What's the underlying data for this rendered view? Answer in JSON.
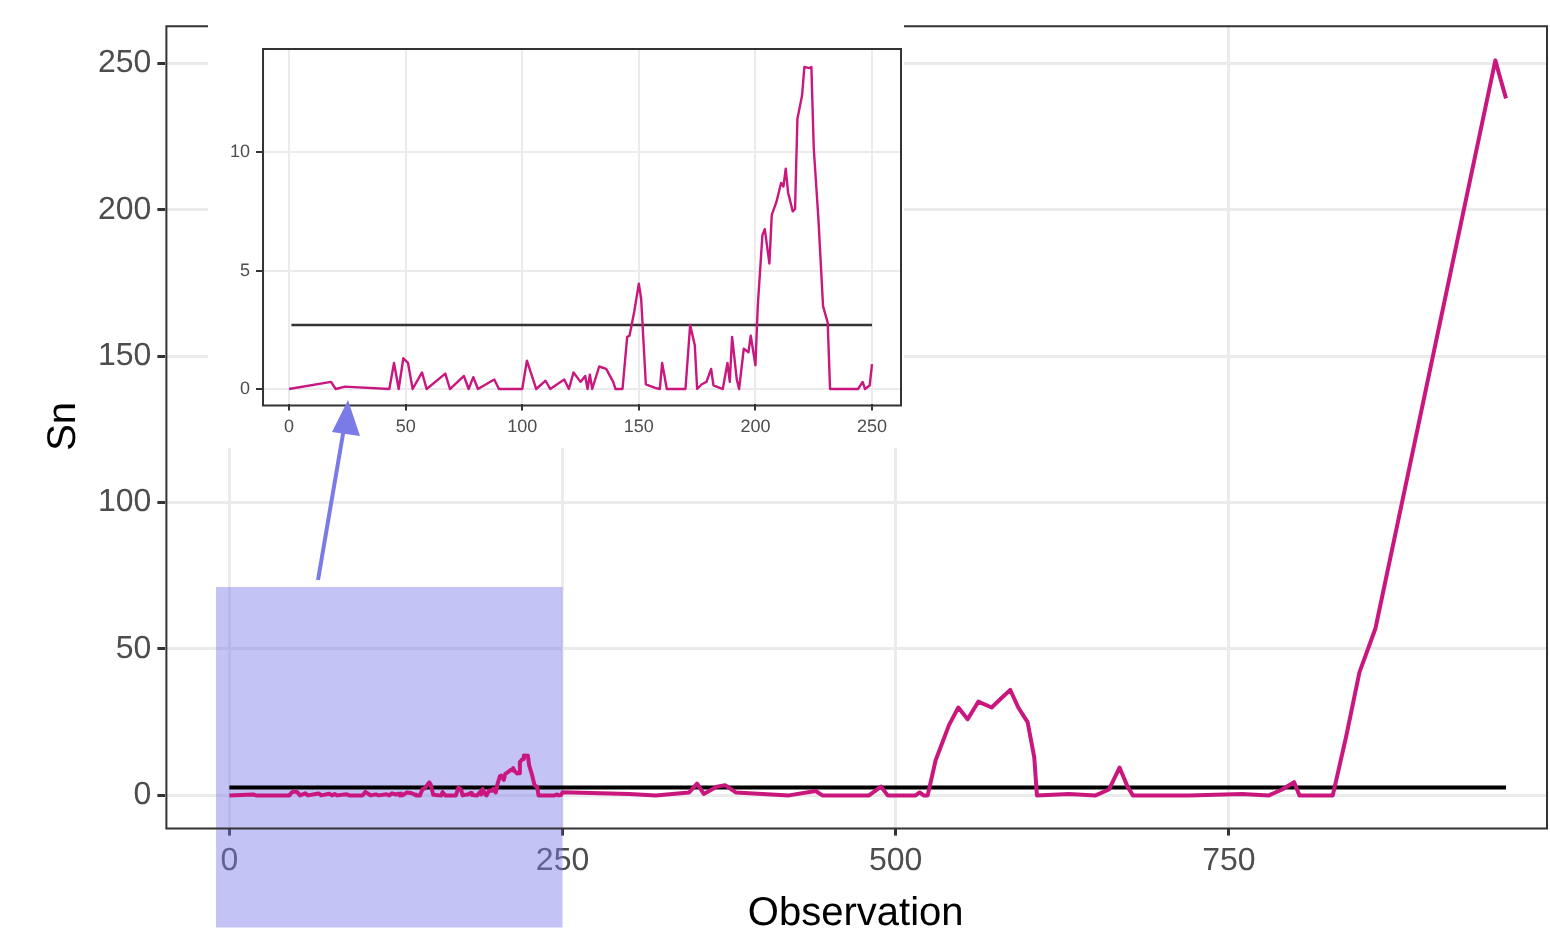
{
  "chart_data": [
    {
      "type": "line",
      "xlabel": "Observation",
      "ylabel": "Sn",
      "xlim": [
        -48,
        988
      ],
      "ylim": [
        -11,
        263
      ],
      "xticks": [
        0,
        250,
        500,
        750
      ],
      "yticks": [
        0,
        50,
        100,
        150,
        200,
        250
      ],
      "grid": true,
      "legend": false,
      "marker": "none",
      "line_style": "solid",
      "bands": [
        {
          "axis": "x",
          "from": -10,
          "to": 250,
          "color": "#7b7be8"
        }
      ],
      "series": [
        {
          "color": "#c9177e",
          "x": [
            0,
            18,
            20,
            45,
            47,
            49,
            51,
            53,
            57,
            59,
            67,
            69,
            75,
            77,
            79,
            81,
            88,
            90,
            100,
            102,
            105,
            106,
            110,
            112,
            118,
            120,
            122,
            125,
            127,
            128,
            129,
            130,
            133,
            136,
            139,
            140,
            143,
            145,
            146,
            148,
            150,
            151,
            153,
            157,
            159,
            160,
            162,
            170,
            172,
            174,
            175,
            177,
            179,
            181,
            182,
            186,
            188,
            189,
            190,
            192,
            193,
            195,
            197,
            198,
            200,
            201,
            203,
            204,
            206,
            207,
            209,
            211,
            212,
            213,
            214,
            216,
            217,
            218,
            220,
            221,
            223,
            224,
            225,
            227,
            229,
            231,
            232,
            244,
            246,
            247,
            249,
            250,
            300,
            320,
            345,
            351,
            356,
            366,
            372,
            380,
            400,
            420,
            440,
            445,
            480,
            489,
            494,
            515,
            518,
            521,
            524,
            530,
            540,
            547,
            554,
            562,
            572,
            580,
            586,
            592,
            599,
            604,
            606,
            630,
            650,
            660,
            668,
            674,
            678,
            720,
            760,
            780,
            790,
            799,
            803,
            820,
            828,
            838,
            848,
            860,
            950,
            953,
            958
          ],
          "values": [
            0,
            0.3,
            0,
            0,
            1.1,
            1.3,
            1.1,
            0,
            0.7,
            0,
            0.65,
            0,
            0.55,
            0,
            0.5,
            0,
            0.4,
            0,
            0,
            1.2,
            0.3,
            0,
            0.35,
            0,
            0.4,
            0,
            0.7,
            0.3,
            0.55,
            0,
            0.6,
            0,
            0.95,
            0.85,
            0.3,
            0,
            0,
            2.2,
            2.25,
            3.25,
            4.45,
            3.8,
            0.2,
            0.05,
            0,
            1.1,
            0,
            0,
            2.7,
            1.85,
            0,
            0.2,
            0.3,
            0.85,
            0.15,
            0,
            1.1,
            0.3,
            2.2,
            0.4,
            0,
            1.7,
            1.55,
            2.25,
            1,
            3.5,
            6.5,
            6.75,
            5.3,
            7.35,
            7.9,
            8.7,
            8.55,
            9.3,
            8.3,
            7.5,
            7.6,
            11.4,
            12.4,
            13.6,
            13.55,
            13.6,
            10.2,
            7.2,
            3.5,
            2.8,
            0,
            0,
            0.3,
            0,
            0.15,
            1.05,
            0.5,
            0,
            1,
            4,
            0.5,
            3,
            3.5,
            1,
            0.5,
            0,
            1.5,
            0,
            0,
            3,
            0,
            0,
            1,
            0,
            0,
            12,
            24,
            30,
            26,
            32,
            30,
            33.5,
            36,
            30,
            25,
            13,
            0,
            0.5,
            0,
            2,
            9.5,
            3,
            0,
            0,
            0.5,
            0,
            2,
            4.5,
            0,
            0,
            0,
            20,
            42,
            57,
            251,
            246,
            238
          ]
        },
        {
          "color": "#000000",
          "x": [
            0,
            958
          ],
          "values": [
            2.7,
            2.7
          ]
        }
      ]
    },
    {
      "type": "line",
      "xlim": [
        -11.6,
        262
      ],
      "ylim": [
        -0.65,
        14.4
      ],
      "xticks": [
        0,
        50,
        100,
        150,
        200,
        250
      ],
      "yticks": [
        0,
        5,
        10
      ],
      "grid": true,
      "legend": false,
      "marker": "none",
      "line_style": "solid",
      "series": [
        {
          "color": "#c9177e",
          "x": [
            0,
            18,
            20,
            24,
            43,
            45,
            47,
            49,
            51,
            53,
            57,
            59,
            67,
            69,
            75,
            77,
            79,
            81,
            88,
            90,
            100,
            102,
            105,
            106,
            110,
            112,
            118,
            120,
            122,
            125,
            127,
            128,
            129,
            130,
            133,
            136,
            139,
            140,
            143,
            145,
            146,
            148,
            150,
            151,
            153,
            157,
            159,
            160,
            162,
            170,
            172,
            174,
            175,
            177,
            179,
            181,
            182,
            186,
            188,
            189,
            190,
            192,
            193,
            195,
            197,
            198,
            200,
            201,
            203,
            204,
            206,
            207,
            209,
            211,
            212,
            213,
            214,
            216,
            217,
            218,
            220,
            221,
            223,
            224,
            225,
            227,
            229,
            231,
            232,
            244,
            246,
            247,
            249,
            250
          ],
          "values": [
            0,
            0.3,
            0,
            0.1,
            0,
            1.1,
            0,
            1.3,
            1.1,
            0,
            0.7,
            0,
            0.65,
            0,
            0.55,
            0,
            0.5,
            0,
            0.4,
            0,
            0,
            1.2,
            0.3,
            0,
            0.35,
            0,
            0.4,
            0,
            0.7,
            0.3,
            0.55,
            0,
            0.6,
            0,
            0.95,
            0.85,
            0.3,
            0,
            0,
            2.2,
            2.25,
            3.25,
            4.45,
            3.8,
            0.2,
            0.05,
            0,
            1.1,
            0,
            0,
            2.7,
            1.85,
            0,
            0.2,
            0.3,
            0.85,
            0.15,
            0,
            1.1,
            0.3,
            2.2,
            0.4,
            0,
            1.7,
            1.55,
            2.25,
            1,
            3.5,
            6.5,
            6.75,
            5.3,
            7.35,
            7.9,
            8.7,
            8.55,
            9.3,
            8.3,
            7.5,
            7.6,
            11.4,
            12.4,
            13.6,
            13.55,
            13.6,
            10.2,
            7.2,
            3.5,
            2.8,
            0,
            0,
            0.3,
            0,
            0.15,
            1.05
          ]
        },
        {
          "color": "#333333",
          "x": [
            1,
            250
          ],
          "values": [
            2.7,
            2.7
          ]
        }
      ]
    }
  ]
}
